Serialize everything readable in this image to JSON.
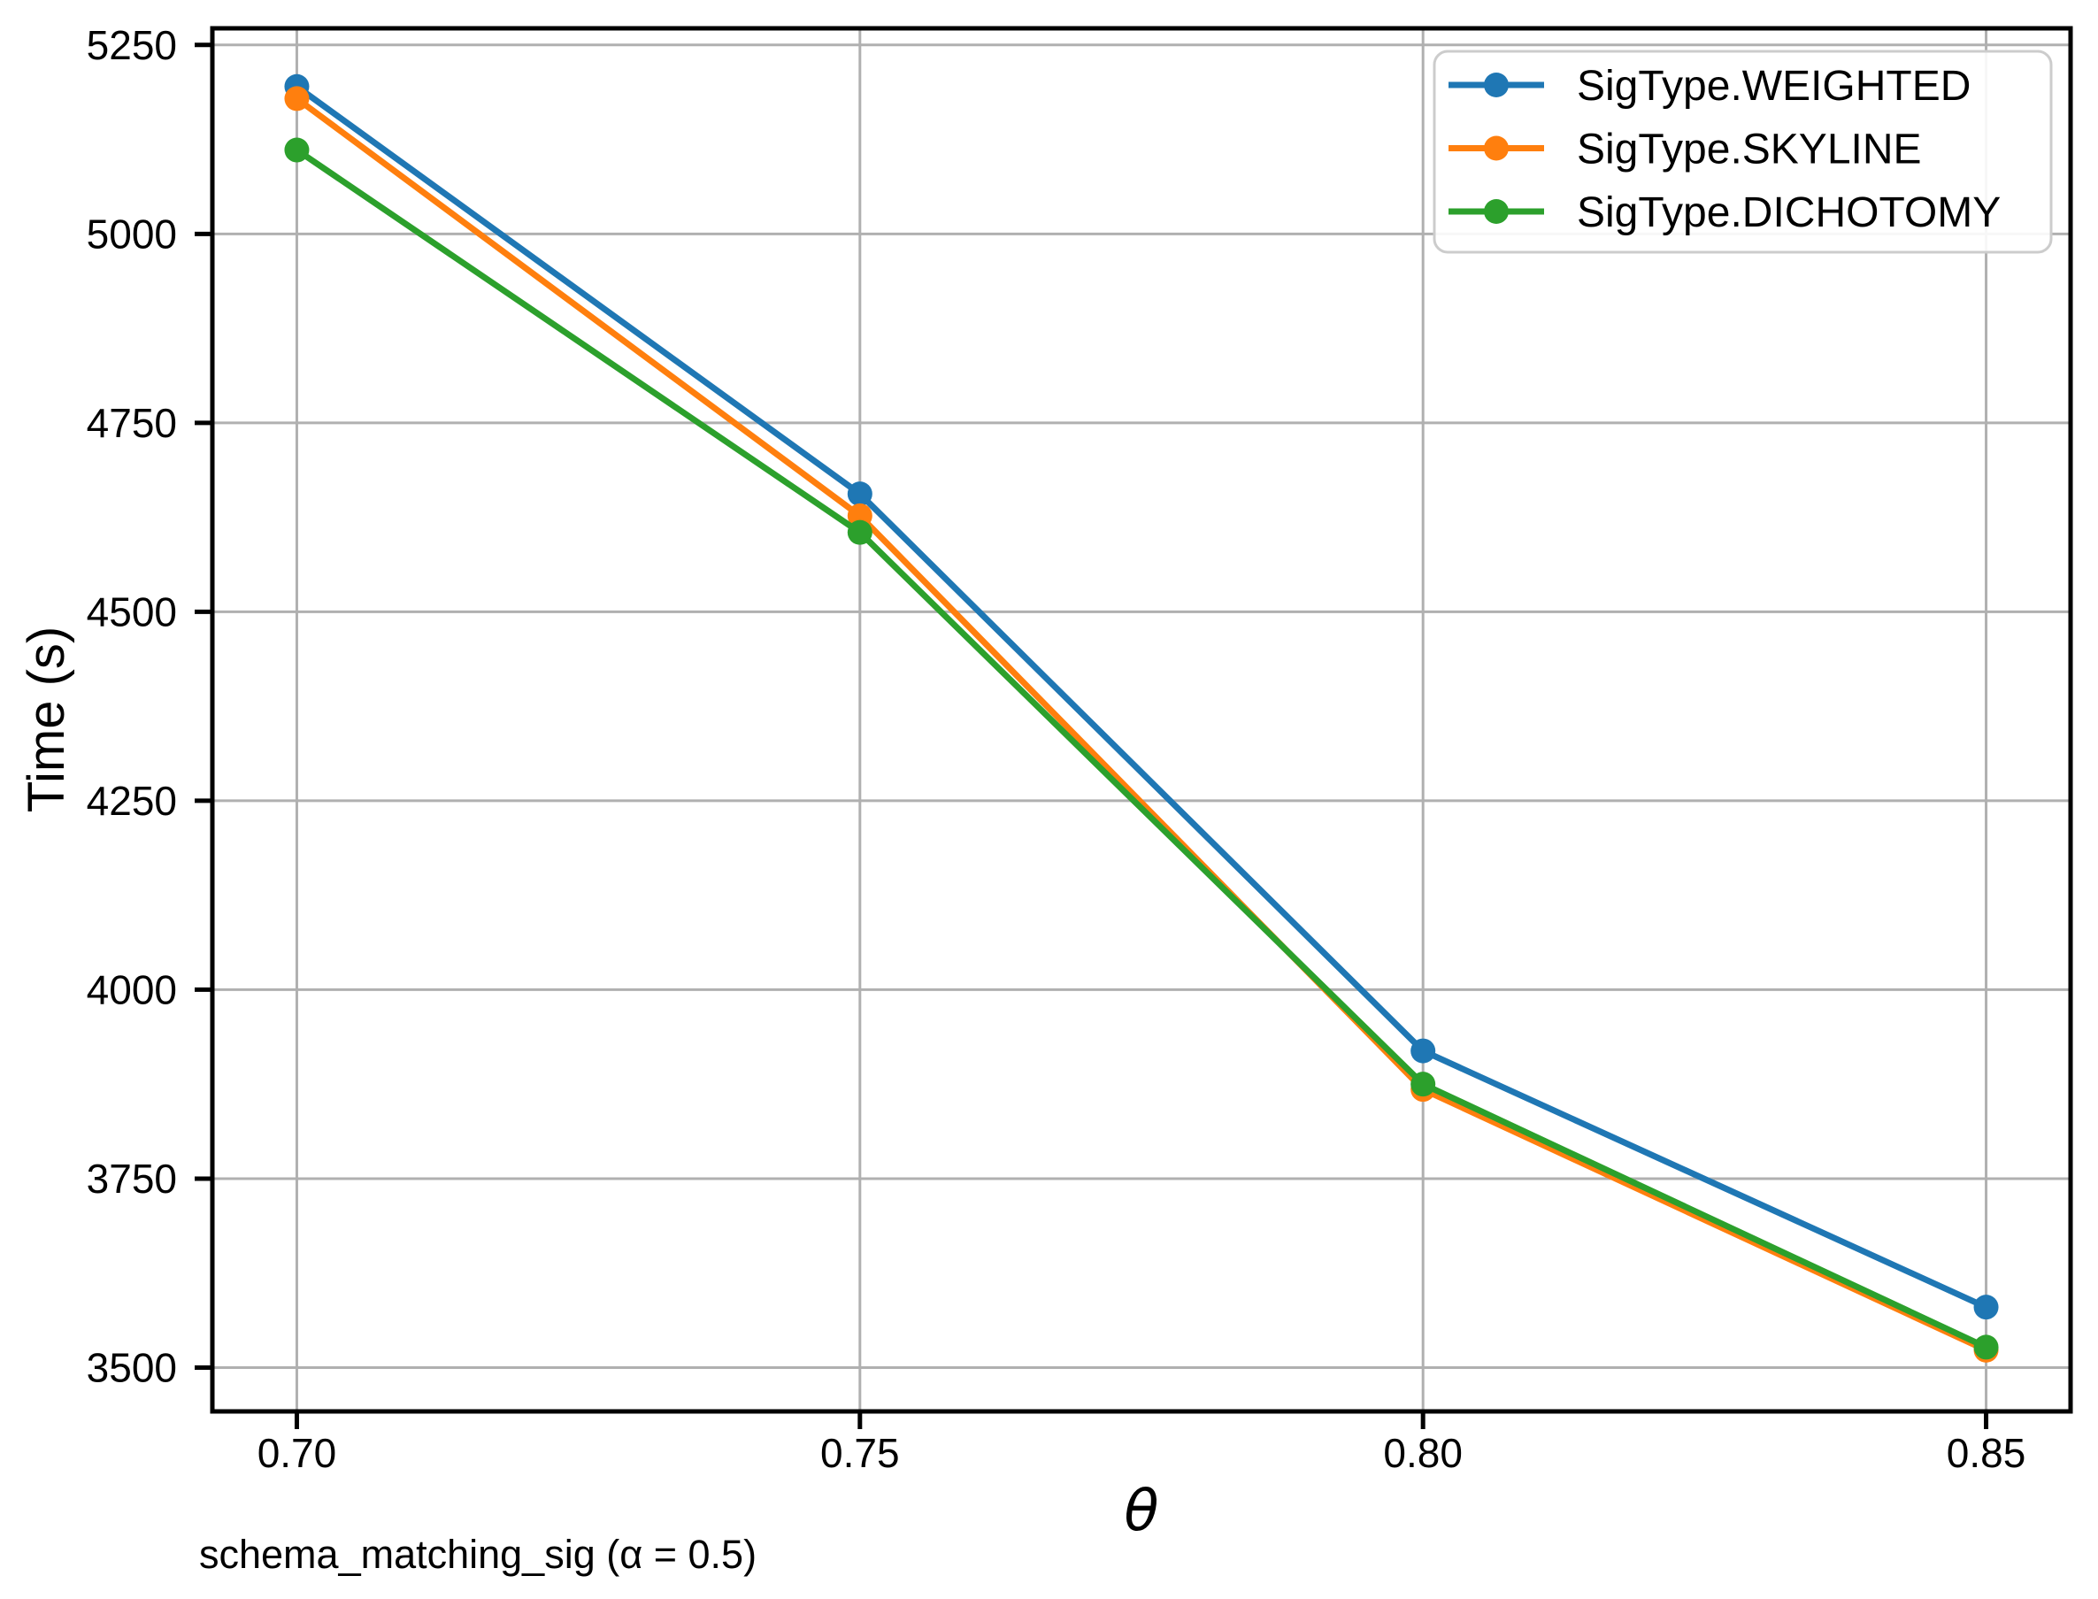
{
  "figure": {
    "background": "#ffffff",
    "caption": "schema_matching_sig (α = 0.5)"
  },
  "chart_data": {
    "type": "line",
    "title": "",
    "xlabel": "θ",
    "ylabel": "Time (s)",
    "x": [
      0.7,
      0.75,
      0.8,
      0.85
    ],
    "x_tick_labels": [
      "0.70",
      "0.75",
      "0.80",
      "0.85"
    ],
    "y_ticks": [
      3500,
      3750,
      4000,
      4250,
      4500,
      4750,
      5000,
      5250
    ],
    "xlim": [
      0.6925,
      0.8575
    ],
    "ylim": [
      3442,
      5272
    ],
    "grid": true,
    "grid_color": "#b0b0b0",
    "axis_color": "#000000",
    "legend": {
      "position": "upper right",
      "border_color": "#cccccc",
      "background": "#ffffff"
    },
    "series": [
      {
        "name": "SigType.WEIGHTED",
        "color": "#1f77b4",
        "marker": "circle",
        "values": [
          5195,
          4656,
          3919,
          3580
        ]
      },
      {
        "name": "SigType.SKYLINE",
        "color": "#ff7f0e",
        "marker": "circle",
        "values": [
          5179,
          4627,
          3868,
          3523
        ]
      },
      {
        "name": "SigType.DICHOTOMY",
        "color": "#2ca02c",
        "marker": "circle",
        "values": [
          5111,
          4605,
          3875,
          3527
        ]
      }
    ]
  }
}
